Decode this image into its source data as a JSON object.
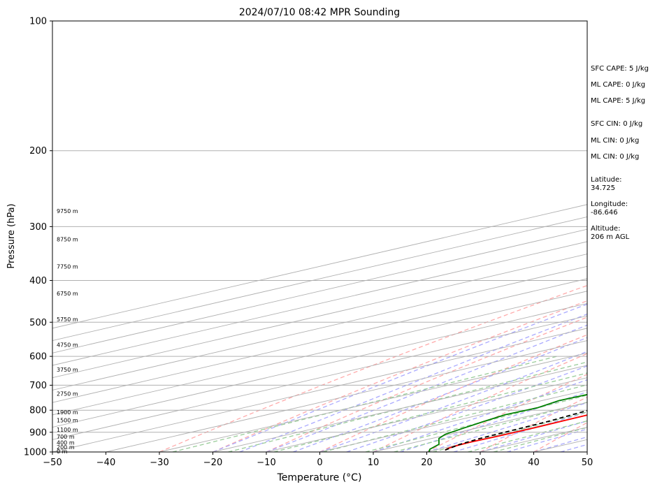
{
  "chart_data": {
    "type": "line",
    "title": "2024/07/10 08:42 MPR Sounding",
    "xlabel": "Temperature (°C)",
    "ylabel": "Pressure (hPa)",
    "xlim": [
      -50,
      50
    ],
    "ylim": [
      1000,
      100
    ],
    "y_scale": "log",
    "skew": "skew-T",
    "grid": true,
    "x_ticks": [
      "−50",
      "−40",
      "−30",
      "−20",
      "−10",
      "0",
      "10",
      "20",
      "30",
      "40",
      "50"
    ],
    "x_tick_values": [
      -50,
      -40,
      -30,
      -20,
      -10,
      0,
      10,
      20,
      30,
      40,
      50
    ],
    "y_ticks": [
      1000,
      900,
      800,
      700,
      600,
      500,
      400,
      300,
      200,
      100
    ],
    "height_labels": [
      {
        "p": 1000,
        "text": "0 m"
      },
      {
        "p": 977,
        "text": "200 m"
      },
      {
        "p": 955,
        "text": "400 m"
      },
      {
        "p": 925,
        "text": "700 m"
      },
      {
        "p": 890,
        "text": "1100 m"
      },
      {
        "p": 847,
        "text": "1500 m"
      },
      {
        "p": 812,
        "text": "1900 m"
      },
      {
        "p": 735,
        "text": "2750 m"
      },
      {
        "p": 646,
        "text": "3750 m"
      },
      {
        "p": 566,
        "text": "4750 m"
      },
      {
        "p": 494,
        "text": "5750 m"
      },
      {
        "p": 430,
        "text": "6750 m"
      },
      {
        "p": 373,
        "text": "7750 m"
      },
      {
        "p": 322,
        "text": "8750 m"
      },
      {
        "p": 277,
        "text": "9750 m"
      }
    ],
    "series": [
      {
        "role": "temperature",
        "color": "#ff0000",
        "points": [
          [
            990,
            21.9
          ],
          [
            980,
            21
          ],
          [
            965,
            20.4
          ],
          [
            950,
            20.2
          ],
          [
            920,
            20.5
          ],
          [
            880,
            20.6
          ],
          [
            840,
            20.3
          ],
          [
            800,
            20
          ],
          [
            760,
            19.5
          ],
          [
            720,
            18.2
          ],
          [
            680,
            16.3
          ],
          [
            640,
            14.9
          ],
          [
            600,
            13.3
          ],
          [
            560,
            12.3
          ],
          [
            520,
            9.9
          ],
          [
            480,
            7.9
          ],
          [
            440,
            5.6
          ],
          [
            400,
            3
          ],
          [
            370,
            0.7
          ],
          [
            340,
            -1.9
          ],
          [
            310,
            -4.9
          ],
          [
            280,
            -9.1
          ]
        ]
      },
      {
        "role": "dewpoint",
        "color": "#008000",
        "points": [
          [
            998,
            20.1
          ],
          [
            985,
            18.3
          ],
          [
            960,
            16.1
          ],
          [
            930,
            11.3
          ],
          [
            910,
            9.2
          ],
          [
            880,
            7.6
          ],
          [
            850,
            6
          ],
          [
            820,
            4.6
          ],
          [
            790,
            5
          ],
          [
            760,
            3.2
          ],
          [
            720,
            3.8
          ],
          [
            680,
            2.5
          ],
          [
            640,
            0.7
          ],
          [
            600,
            -1.2
          ],
          [
            580,
            -1.5
          ],
          [
            550,
            -4.2
          ],
          [
            520,
            -8.1
          ],
          [
            480,
            -14.1
          ],
          [
            450,
            -17.4
          ],
          [
            430,
            -20.4
          ],
          [
            415,
            -20.1
          ],
          [
            400,
            -20.3
          ],
          [
            385,
            -22.7
          ],
          [
            375,
            -23.2
          ],
          [
            360,
            -27.2
          ],
          [
            345,
            -31.3
          ],
          [
            330,
            -34.2
          ],
          [
            315,
            -35.3
          ],
          [
            300,
            -38.3
          ],
          [
            290,
            -39.2
          ],
          [
            280,
            -31.4
          ]
        ]
      },
      {
        "role": "parcel",
        "color": "#000000",
        "style": "dashed",
        "points": [
          [
            990,
            21.9
          ],
          [
            960,
            20
          ],
          [
            930,
            19
          ],
          [
            890,
            18.5
          ],
          [
            850,
            18
          ],
          [
            800,
            16.5
          ],
          [
            750,
            15
          ],
          [
            700,
            12.8
          ],
          [
            650,
            11.3
          ],
          [
            600,
            8.8
          ],
          [
            550,
            7
          ],
          [
            500,
            4.5
          ],
          [
            450,
            2
          ],
          [
            400,
            -1.5
          ],
          [
            350,
            -5.2
          ],
          [
            300,
            -10.5
          ],
          [
            280,
            -12.8
          ]
        ]
      }
    ],
    "background_lines": {
      "isotherms_color": "#b0b0b0",
      "dry_adiabats_color": "#ffaaaa",
      "moist_adiabats_color": "#aaaaff",
      "mixing_ratio_color": "#99cc99"
    }
  },
  "side_panel": {
    "sfc_cape": "SFC CAPE: 5 J/kg",
    "ml_cape_1": "ML CAPE: 0 J/kg",
    "ml_cape_2": "ML CAPE: 5 J/kg",
    "sfc_cin": "SFC CIN: 0 J/kg",
    "ml_cin_1": "ML CIN: 0 J/kg",
    "ml_cin_2": "ML CIN: 0 J/kg",
    "latitude_label": "Latitude:",
    "latitude_value": "34.725",
    "longitude_label": "Longitude:",
    "longitude_value": "-86.646",
    "altitude_label": "Altitude:",
    "altitude_value": "206 m AGL"
  }
}
